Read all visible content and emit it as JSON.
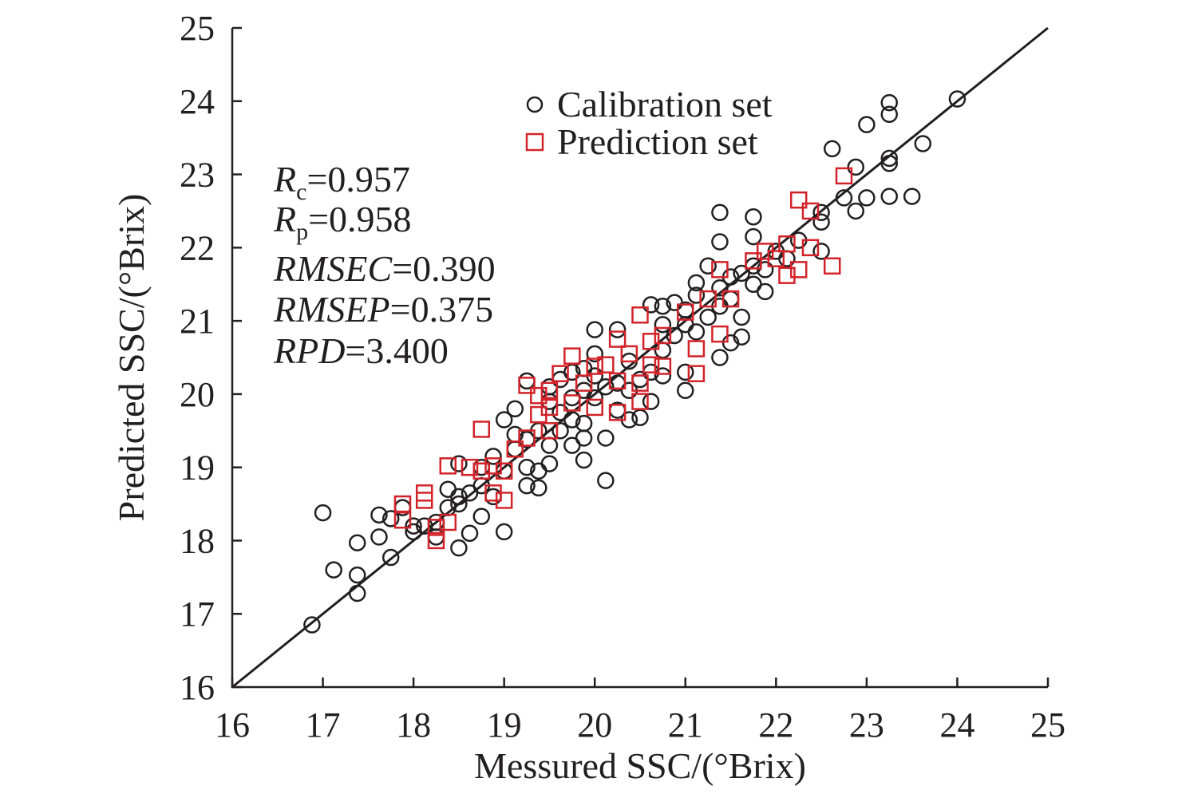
{
  "chart_data": {
    "type": "scatter",
    "title": "",
    "xlabel": "Messured SSC/(°Brix)",
    "ylabel": "Predicted SSC/(°Brix)",
    "xlim": [
      16,
      25
    ],
    "ylim": [
      16,
      25
    ],
    "xticks": [
      "16",
      "17",
      "18",
      "19",
      "20",
      "21",
      "22",
      "23",
      "24",
      "25"
    ],
    "yticks": [
      "16",
      "17",
      "18",
      "19",
      "20",
      "21",
      "22",
      "23",
      "24",
      "25"
    ],
    "grid": false,
    "legend_position": "top-right",
    "reference_line": "y = x",
    "stats": [
      {
        "var": "R",
        "sub": "c",
        "value": "=0.957"
      },
      {
        "var": "R",
        "sub": "p",
        "value": "=0.958"
      },
      {
        "var": "RMSEC",
        "sub": "",
        "value": "=0.390"
      },
      {
        "var": "RMSEP",
        "sub": "",
        "value": "=0.375"
      },
      {
        "var": "RPD",
        "sub": "",
        "value": "=3.400"
      }
    ],
    "series": [
      {
        "name": "Calibration set",
        "marker": "circle",
        "color": "#231f20",
        "points": [
          [
            16.88,
            16.85
          ],
          [
            17.0,
            18.38
          ],
          [
            17.12,
            17.6
          ],
          [
            17.38,
            17.97
          ],
          [
            17.38,
            17.53
          ],
          [
            17.38,
            17.28
          ],
          [
            17.62,
            18.35
          ],
          [
            17.62,
            18.05
          ],
          [
            17.75,
            17.77
          ],
          [
            17.75,
            18.3
          ],
          [
            17.88,
            18.45
          ],
          [
            18.0,
            18.12
          ],
          [
            18.0,
            18.2
          ],
          [
            18.12,
            18.2
          ],
          [
            18.25,
            18.05
          ],
          [
            18.25,
            18.25
          ],
          [
            18.38,
            18.45
          ],
          [
            18.38,
            18.7
          ],
          [
            18.5,
            17.9
          ],
          [
            18.5,
            18.5
          ],
          [
            18.5,
            18.6
          ],
          [
            18.5,
            19.05
          ],
          [
            18.62,
            18.1
          ],
          [
            18.62,
            18.65
          ],
          [
            18.75,
            18.33
          ],
          [
            18.75,
            18.75
          ],
          [
            18.75,
            19.0
          ],
          [
            18.88,
            18.6
          ],
          [
            18.88,
            19.15
          ],
          [
            19.0,
            18.12
          ],
          [
            19.0,
            18.95
          ],
          [
            19.0,
            19.65
          ],
          [
            19.12,
            19.25
          ],
          [
            19.12,
            19.45
          ],
          [
            19.12,
            19.8
          ],
          [
            19.25,
            18.75
          ],
          [
            19.25,
            19.0
          ],
          [
            19.25,
            19.38
          ],
          [
            19.25,
            20.18
          ],
          [
            19.38,
            18.72
          ],
          [
            19.38,
            18.95
          ],
          [
            19.38,
            19.5
          ],
          [
            19.5,
            19.05
          ],
          [
            19.5,
            19.3
          ],
          [
            19.5,
            19.9
          ],
          [
            19.5,
            20.1
          ],
          [
            19.62,
            19.5
          ],
          [
            19.62,
            19.75
          ],
          [
            19.62,
            20.2
          ],
          [
            19.75,
            19.3
          ],
          [
            19.75,
            19.65
          ],
          [
            19.75,
            19.95
          ],
          [
            19.75,
            20.3
          ],
          [
            19.88,
            19.1
          ],
          [
            19.88,
            19.4
          ],
          [
            19.88,
            19.6
          ],
          [
            19.88,
            20.05
          ],
          [
            19.88,
            20.35
          ],
          [
            20.0,
            19.95
          ],
          [
            20.0,
            20.25
          ],
          [
            20.0,
            20.55
          ],
          [
            20.0,
            20.88
          ],
          [
            20.12,
            18.82
          ],
          [
            20.12,
            19.4
          ],
          [
            20.12,
            20.1
          ],
          [
            20.25,
            19.78
          ],
          [
            20.25,
            20.15
          ],
          [
            20.25,
            20.88
          ],
          [
            20.38,
            19.65
          ],
          [
            20.38,
            20.05
          ],
          [
            20.38,
            20.45
          ],
          [
            20.5,
            19.68
          ],
          [
            20.5,
            20.2
          ],
          [
            20.62,
            19.9
          ],
          [
            20.62,
            20.3
          ],
          [
            20.62,
            21.22
          ],
          [
            20.75,
            20.25
          ],
          [
            20.75,
            20.6
          ],
          [
            20.75,
            20.95
          ],
          [
            20.75,
            21.2
          ],
          [
            20.88,
            20.8
          ],
          [
            20.88,
            21.25
          ],
          [
            21.0,
            20.05
          ],
          [
            21.0,
            20.3
          ],
          [
            21.0,
            20.95
          ],
          [
            21.0,
            21.15
          ],
          [
            21.12,
            20.85
          ],
          [
            21.12,
            21.35
          ],
          [
            21.12,
            21.52
          ],
          [
            21.25,
            21.05
          ],
          [
            21.25,
            21.75
          ],
          [
            21.38,
            20.5
          ],
          [
            21.38,
            21.2
          ],
          [
            21.38,
            21.45
          ],
          [
            21.38,
            22.08
          ],
          [
            21.38,
            22.48
          ],
          [
            21.5,
            20.7
          ],
          [
            21.5,
            21.3
          ],
          [
            21.5,
            21.6
          ],
          [
            21.62,
            20.78
          ],
          [
            21.62,
            21.05
          ],
          [
            21.62,
            21.65
          ],
          [
            21.75,
            21.5
          ],
          [
            21.75,
            21.75
          ],
          [
            21.75,
            22.15
          ],
          [
            21.75,
            22.42
          ],
          [
            21.88,
            21.4
          ],
          [
            21.88,
            21.7
          ],
          [
            22.0,
            21.95
          ],
          [
            22.12,
            21.85
          ],
          [
            22.25,
            22.1
          ],
          [
            22.5,
            21.95
          ],
          [
            22.5,
            22.35
          ],
          [
            22.5,
            22.48
          ],
          [
            22.62,
            23.35
          ],
          [
            22.75,
            22.68
          ],
          [
            22.88,
            22.5
          ],
          [
            22.88,
            23.1
          ],
          [
            23.0,
            22.68
          ],
          [
            23.0,
            23.68
          ],
          [
            23.25,
            22.7
          ],
          [
            23.25,
            23.15
          ],
          [
            23.25,
            23.22
          ],
          [
            23.25,
            23.82
          ],
          [
            23.25,
            23.98
          ],
          [
            23.5,
            22.7
          ],
          [
            23.62,
            23.42
          ],
          [
            24.0,
            24.03
          ]
        ]
      },
      {
        "name": "Prediction set",
        "marker": "square",
        "color": "#d2232a",
        "points": [
          [
            17.88,
            18.5
          ],
          [
            17.88,
            18.28
          ],
          [
            18.12,
            18.65
          ],
          [
            18.12,
            18.55
          ],
          [
            18.25,
            18.18
          ],
          [
            18.25,
            18.0
          ],
          [
            18.38,
            18.25
          ],
          [
            18.38,
            19.02
          ],
          [
            18.62,
            19.0
          ],
          [
            18.75,
            19.52
          ],
          [
            18.75,
            18.95
          ],
          [
            18.88,
            19.02
          ],
          [
            18.88,
            18.65
          ],
          [
            19.0,
            18.55
          ],
          [
            19.0,
            18.95
          ],
          [
            19.12,
            19.25
          ],
          [
            19.25,
            20.12
          ],
          [
            19.25,
            19.4
          ],
          [
            19.38,
            19.72
          ],
          [
            19.38,
            19.98
          ],
          [
            19.5,
            19.5
          ],
          [
            19.5,
            19.82
          ],
          [
            19.5,
            20.05
          ],
          [
            19.62,
            20.28
          ],
          [
            19.75,
            20.52
          ],
          [
            19.75,
            19.88
          ],
          [
            19.88,
            20.15
          ],
          [
            20.0,
            20.38
          ],
          [
            20.0,
            19.82
          ],
          [
            20.12,
            20.4
          ],
          [
            20.25,
            19.75
          ],
          [
            20.25,
            20.18
          ],
          [
            20.25,
            20.75
          ],
          [
            20.38,
            20.55
          ],
          [
            20.5,
            19.9
          ],
          [
            20.5,
            20.15
          ],
          [
            20.5,
            21.08
          ],
          [
            20.62,
            20.4
          ],
          [
            20.62,
            20.72
          ],
          [
            20.75,
            20.38
          ],
          [
            20.75,
            20.8
          ],
          [
            21.0,
            21.12
          ],
          [
            21.12,
            20.62
          ],
          [
            21.12,
            20.28
          ],
          [
            21.25,
            21.3
          ],
          [
            21.38,
            21.7
          ],
          [
            21.38,
            20.82
          ],
          [
            21.5,
            21.3
          ],
          [
            21.75,
            21.82
          ],
          [
            21.88,
            21.95
          ],
          [
            22.0,
            21.85
          ],
          [
            22.12,
            21.62
          ],
          [
            22.12,
            22.05
          ],
          [
            22.25,
            22.65
          ],
          [
            22.25,
            21.7
          ],
          [
            22.38,
            22.5
          ],
          [
            22.38,
            22.0
          ],
          [
            22.62,
            21.75
          ],
          [
            22.75,
            22.98
          ]
        ]
      }
    ]
  }
}
